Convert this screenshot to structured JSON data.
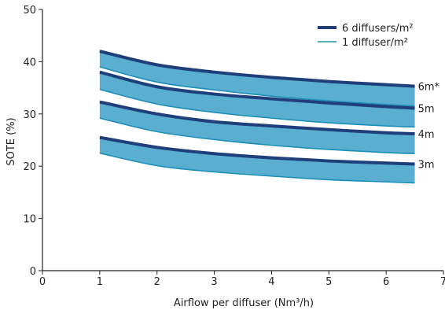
{
  "chart_data": {
    "type": "area",
    "xlabel": "Airflow per diffuser (Nm³/h)",
    "ylabel": "SOTE (%)",
    "xlim": [
      0,
      7
    ],
    "ylim": [
      0,
      50
    ],
    "xticks": [
      0,
      1,
      2,
      3,
      4,
      5,
      6,
      7
    ],
    "yticks": [
      0,
      10,
      20,
      30,
      40,
      50
    ],
    "grid": false,
    "legend_position": "top-right",
    "legend": [
      {
        "label": "6 diffusers/m²",
        "color": "#1f3f7a",
        "style": "thick"
      },
      {
        "label": "1 diffuser/m²",
        "color": "#1b8fb8",
        "style": "thin"
      }
    ],
    "band_fill": "#5aafd1",
    "x": [
      1,
      2,
      3,
      4,
      5,
      6,
      6.5
    ],
    "bands": [
      {
        "label": "6m*",
        "upper": [
          42,
          39.4,
          38,
          37,
          36.2,
          35.6,
          35.3
        ],
        "lower": [
          39,
          36.1,
          34.6,
          33.4,
          32.5,
          31.8,
          31.5
        ]
      },
      {
        "label": "5m",
        "upper": [
          38,
          35.2,
          33.8,
          32.9,
          32.1,
          31.4,
          31.1
        ],
        "lower": [
          34.7,
          31.9,
          30.3,
          29.2,
          28.3,
          27.7,
          27.5
        ]
      },
      {
        "label": "4m",
        "upper": [
          32.3,
          30,
          28.5,
          27.7,
          27,
          26.4,
          26.2
        ],
        "lower": [
          29.2,
          26.6,
          25.1,
          24,
          23.2,
          22.6,
          22.4
        ]
      },
      {
        "label": "3m",
        "upper": [
          25.5,
          23.6,
          22.4,
          21.6,
          21,
          20.6,
          20.4
        ],
        "lower": [
          22.5,
          20.1,
          18.9,
          18.1,
          17.4,
          17,
          16.8
        ]
      }
    ]
  }
}
